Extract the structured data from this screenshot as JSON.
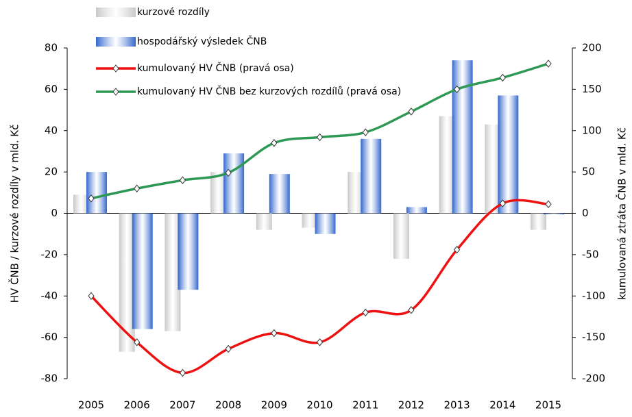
{
  "chart_data": {
    "type": "bar",
    "categories": [
      "2005",
      "2006",
      "2007",
      "2008",
      "2009",
      "2010",
      "2011",
      "2012",
      "2013",
      "2014",
      "2015"
    ],
    "ylabel": "HV ČNB / kurzové rozdíly v mld. Kč",
    "y2label": "kumulovaná ztráta ČNB v mld. Kč",
    "ylim": [
      -80,
      80
    ],
    "yticks": [
      -80,
      -60,
      -40,
      -20,
      0,
      20,
      40,
      60,
      80
    ],
    "y2lim": [
      -200,
      200
    ],
    "y2ticks": [
      -200,
      -150,
      -100,
      -50,
      0,
      50,
      100,
      150,
      200
    ],
    "grid": false,
    "series": [
      {
        "name": "kurzové rozdíly",
        "type": "bar",
        "color": "#c8c8c8",
        "values": [
          9,
          -67,
          -57,
          20,
          -8,
          -7,
          20,
          -22,
          47,
          43,
          -8
        ]
      },
      {
        "name": "hospodářský výsledek ČNB",
        "type": "bar",
        "color": "#3366cc",
        "values": [
          20,
          -56,
          -37,
          29,
          19,
          -10,
          36,
          3,
          74,
          57,
          -0.5
        ]
      },
      {
        "name": "kumulovaný HV ČNB (pravá osa)",
        "type": "line",
        "axis": "y2",
        "color": "#ee1111",
        "values": [
          -100,
          -156,
          -193,
          -164,
          -145,
          -156,
          -120,
          -117,
          -44,
          12,
          11
        ]
      },
      {
        "name": "kumulovaný HV ČNB bez kurzových rozdílů (pravá osa)",
        "type": "line",
        "axis": "y2",
        "color": "#2e9955",
        "values": [
          18,
          30,
          40,
          49,
          85,
          92,
          98,
          123,
          150,
          164,
          181
        ]
      }
    ]
  }
}
